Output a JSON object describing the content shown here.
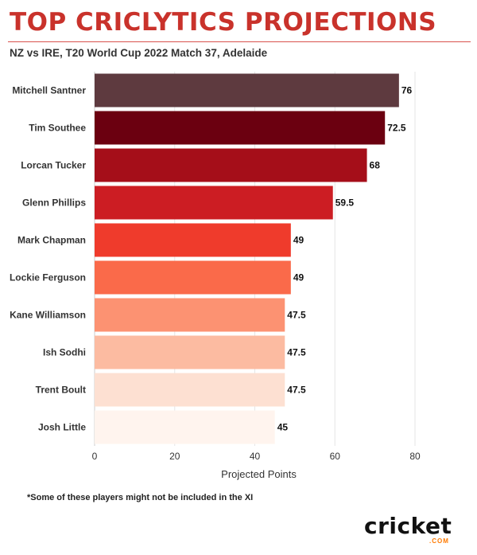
{
  "title": "TOP CRICLYTICS PROJECTIONS",
  "subtitle": "NZ vs IRE, T20 World Cup 2022 Match 37, Adelaide",
  "footnote": "*Some of these players might not be included in the XI",
  "logo": {
    "word": "cricket",
    "sub": ".COM",
    "accent_color": "#ff7a00"
  },
  "chart_data": {
    "type": "bar",
    "orientation": "horizontal",
    "categories": [
      "Mitchell Santner",
      "Tim Southee",
      "Lorcan Tucker",
      "Glenn Phillips",
      "Mark Chapman",
      "Lockie Ferguson",
      "Kane Williamson",
      "Ish Sodhi",
      "Trent Boult",
      "Josh Little"
    ],
    "values": [
      76,
      72.5,
      68,
      59.5,
      49,
      49,
      47.5,
      47.5,
      47.5,
      45
    ],
    "value_labels": [
      "76",
      "72.5",
      "68",
      "59.5",
      "49",
      "49",
      "47.5",
      "47.5",
      "47.5",
      "45"
    ],
    "colors": [
      "#5e3a3f",
      "#6b0010",
      "#a50e19",
      "#cc1d23",
      "#ef3b2c",
      "#fa6a4a",
      "#fc9272",
      "#fcbba1",
      "#fde0d2",
      "#fff4ee"
    ],
    "xlabel": "Projected Points",
    "ylabel": "",
    "xlim": [
      0,
      80
    ],
    "xticks": [
      0,
      20,
      40,
      60,
      80
    ],
    "xtick_labels": [
      "0",
      "20",
      "40",
      "60",
      "80"
    ],
    "grid": true,
    "legend": "none"
  }
}
